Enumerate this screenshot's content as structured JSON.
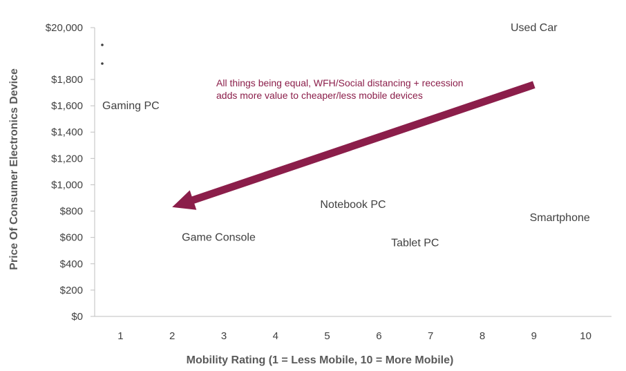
{
  "chart_data": {
    "type": "scatter",
    "xlabel": "Mobility Rating (1 = Less Mobile, 10 = More Mobile)",
    "ylabel": "Price Of Consumer Electronics Device",
    "x_ticks": [
      "1",
      "2",
      "3",
      "4",
      "5",
      "6",
      "7",
      "8",
      "9",
      "10"
    ],
    "y_ticks": [
      "$0",
      "$200",
      "$400",
      "$600",
      "$800",
      "$1,000",
      "$1,200",
      "$1,400",
      "$1,600",
      "$1,800",
      "$20,000"
    ],
    "xlim": [
      0.5,
      10.5
    ],
    "grid": false,
    "axis_break": true,
    "points": [
      {
        "label": "Used Car",
        "x": 9,
        "y": 20000
      },
      {
        "label": "Gaming PC",
        "x": 1.2,
        "y": 1600
      },
      {
        "label": "Notebook PC",
        "x": 5.5,
        "y": 850
      },
      {
        "label": "Smartphone",
        "x": 9.5,
        "y": 750
      },
      {
        "label": "Game Console",
        "x": 2.9,
        "y": 600
      },
      {
        "label": "Tablet PC",
        "x": 6.7,
        "y": 560
      }
    ],
    "annotation": {
      "lines": [
        "All things being equal, WFH/Social distancing + recession",
        "adds more value to cheaper/less mobile devices"
      ],
      "arrow_from": {
        "x": 9.0,
        "y": 1760
      },
      "arrow_to": {
        "x": 2.0,
        "y": 830
      },
      "color": "#8b1e4a"
    },
    "colors": {
      "axis": "#bfbfbf",
      "text": "#404040",
      "title": "#595959",
      "accent": "#8b1e4a"
    }
  }
}
